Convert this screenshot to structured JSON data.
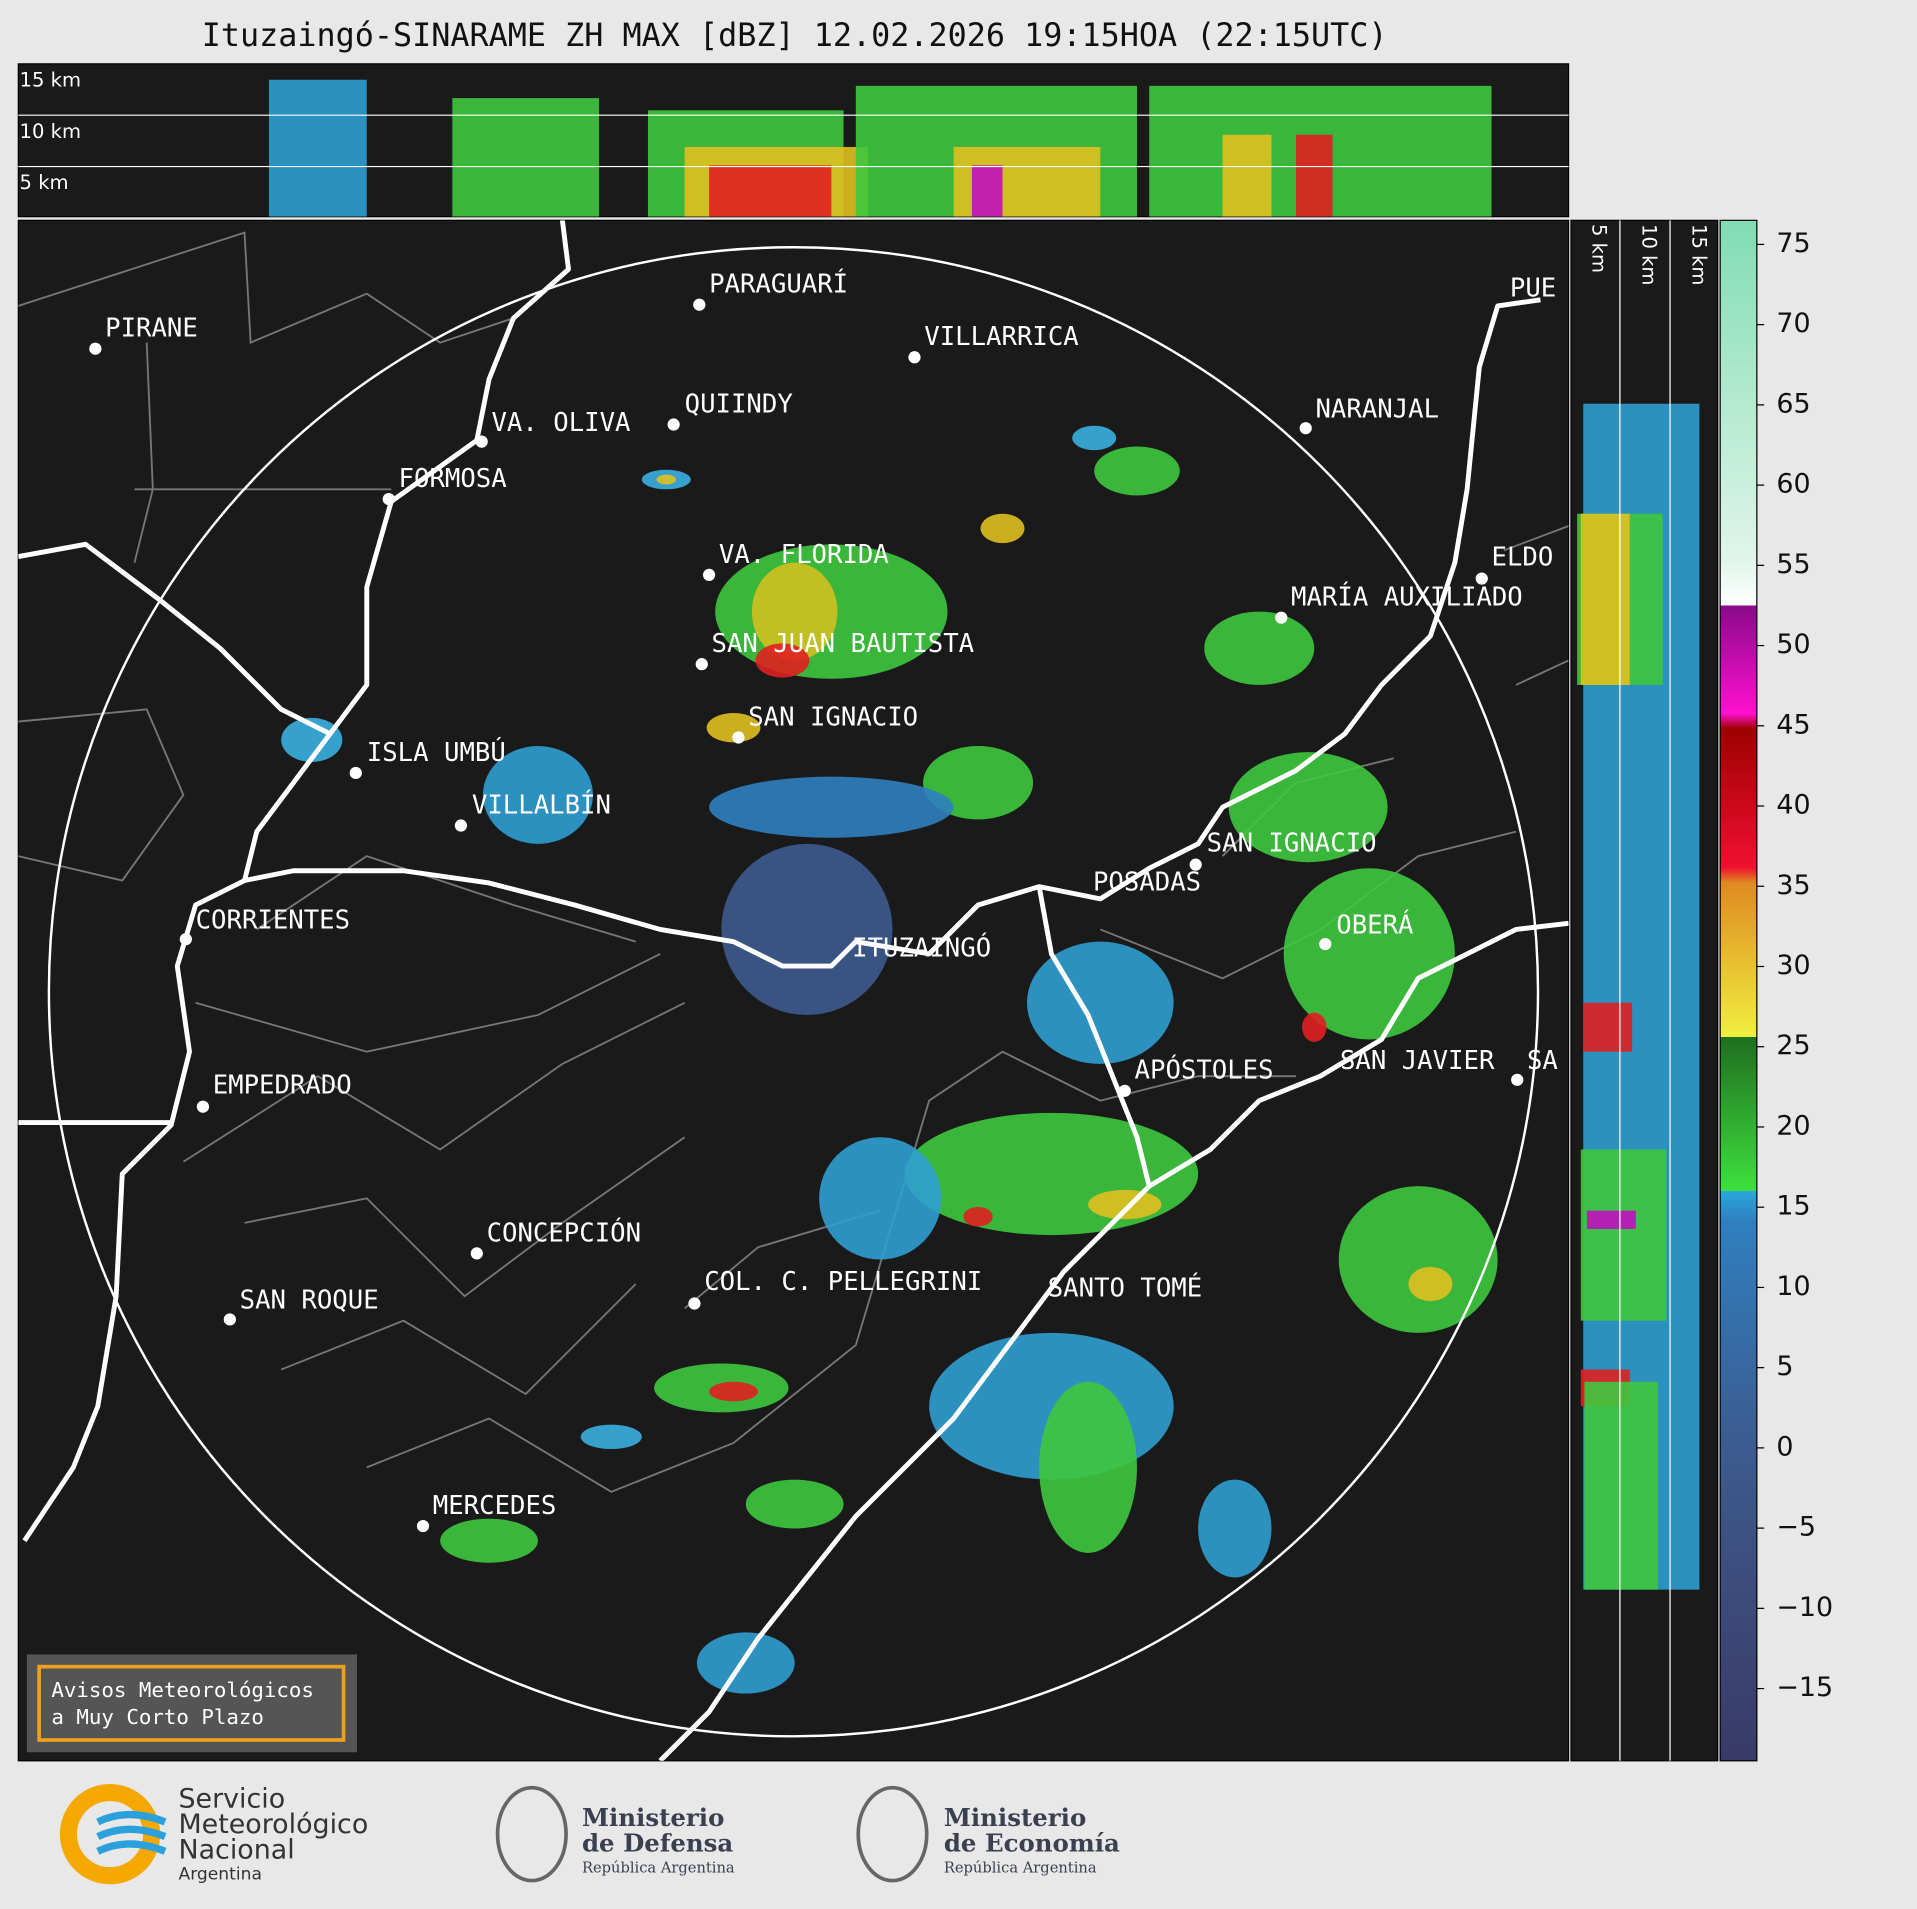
{
  "header": {
    "title": "Ituzaingó-SINARAME ZH MAX [dBZ] 12.02.2026 19:15HOA (22:15UTC)"
  },
  "height_labels": [
    "15 km",
    "10 km",
    "5 km"
  ],
  "side_height_labels": [
    "5 km",
    "10 km",
    "15 km"
  ],
  "places": [
    "PARAGUARÍ",
    "PIRANE",
    "VILLARRICA",
    "QUIINDY",
    "VA. OLIVA",
    "FORMOSA",
    "NARANJAL",
    "VA. FLORIDA",
    "ELDO",
    "MARÍA AUXILIADO",
    "SAN JUAN BAUTISTA",
    "SAN IGNACIO",
    "ISLA UMBÚ",
    "VILLALBÍN",
    "SAN IGNACIO",
    "POSADAS",
    "CORRIENTES",
    "ITUZAINGÓ",
    "OBERÁ",
    "SAN JAVIER",
    "SA",
    "APÓSTOLES",
    "EMPEDRADO",
    "CONCEPCIÓN",
    "COL. C. PELLEGRINI",
    "SANTO TOMÉ",
    "SAN ROQUE",
    "MERCEDES",
    "PUE"
  ],
  "colorbar": {
    "ylim": [
      -19.5,
      76.5
    ],
    "ticks": [
      75,
      70,
      65,
      60,
      55,
      50,
      45,
      40,
      35,
      30,
      25,
      20,
      15,
      10,
      5,
      0,
      {
        "value": -5,
        "label": "−5"
      },
      {
        "value": -10,
        "label": "−10"
      },
      {
        "value": -15,
        "label": "−15"
      }
    ]
  },
  "notice": [
    "Avisos Meteorológicos",
    "a Muy Corto Plazo"
  ],
  "footer": {
    "smn": [
      "Servicio",
      "Meteorológico",
      "Nacional",
      "Argentina"
    ],
    "defensa": [
      "Ministerio",
      "de Defensa",
      "República Argentina"
    ],
    "economia": [
      "Ministerio",
      "de Economía",
      "República Argentina"
    ]
  }
}
